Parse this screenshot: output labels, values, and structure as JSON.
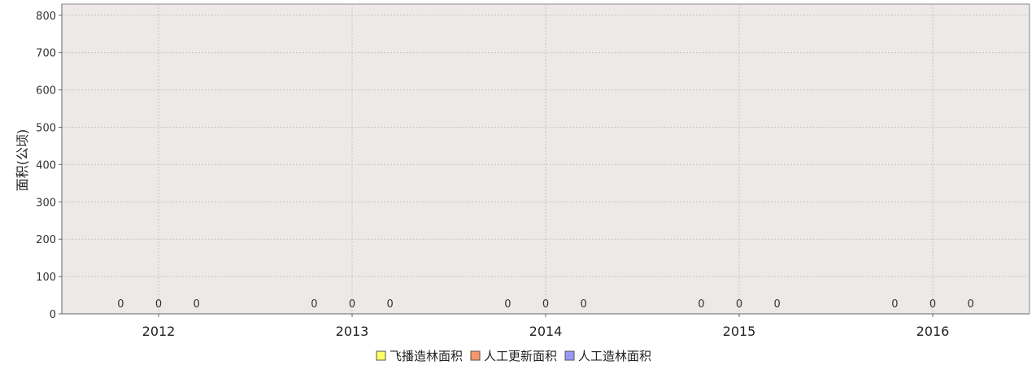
{
  "chart_data": {
    "type": "bar",
    "title": "",
    "xlabel": "",
    "ylabel": "面积(公顷)",
    "ylim": [
      0,
      830
    ],
    "yticks": [
      0,
      100,
      200,
      300,
      400,
      500,
      600,
      700,
      800
    ],
    "categories": [
      "2012",
      "2013",
      "2014",
      "2015",
      "2016"
    ],
    "series": [
      {
        "name": "飞播造林面积",
        "color": "#FFFF66",
        "values": [
          0,
          0,
          0,
          0,
          0
        ]
      },
      {
        "name": "人工更新面积",
        "color": "#F7976A",
        "values": [
          0,
          0,
          0,
          0,
          0
        ]
      },
      {
        "name": "人工造林面积",
        "color": "#9999F5",
        "values": [
          0,
          0,
          0,
          0,
          0
        ]
      }
    ],
    "legend_position": "bottom",
    "grid": true
  }
}
